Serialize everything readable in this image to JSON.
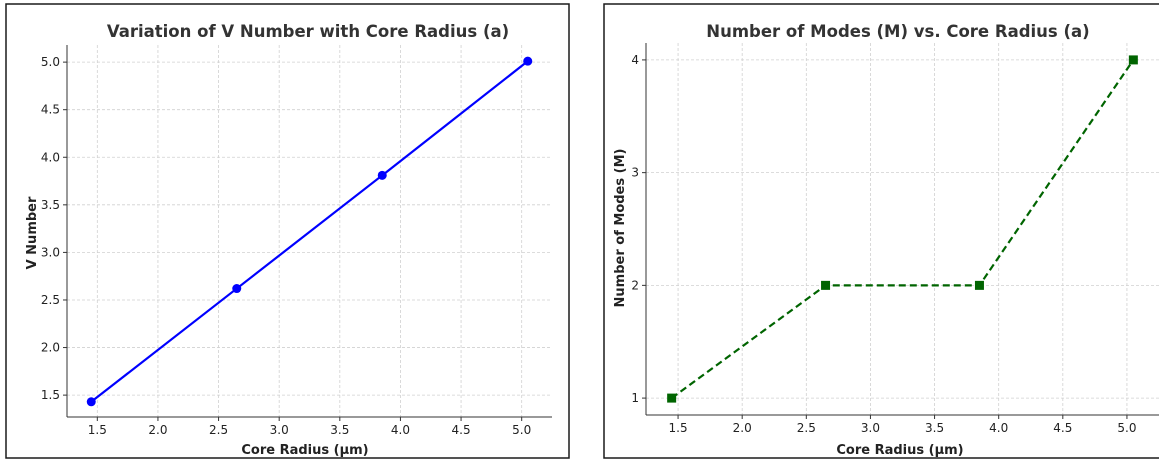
{
  "chart_data": [
    {
      "type": "line",
      "title": "Variation of V Number with Core Radius (a)",
      "xlabel": "Core Radius (µm)",
      "ylabel": "V Number",
      "x": [
        1.45,
        2.65,
        3.85,
        5.05
      ],
      "series": [
        {
          "values": [
            1.43,
            2.62,
            3.81,
            5.01
          ],
          "color": "#0000ff",
          "linestyle": "solid",
          "marker": "circle"
        }
      ],
      "xlim": [
        1.25,
        5.25
      ],
      "ylim": [
        1.27,
        5.18
      ],
      "xticks": [
        1.5,
        2.0,
        2.5,
        3.0,
        3.5,
        4.0,
        4.5,
        5.0
      ],
      "xtick_labels": [
        "1.5",
        "2.0",
        "2.5",
        "3.0",
        "3.5",
        "4.0",
        "4.5",
        "5.0"
      ],
      "yticks": [
        1.5,
        2.0,
        2.5,
        3.0,
        3.5,
        4.0,
        4.5,
        5.0
      ],
      "ytick_labels": [
        "1.5",
        "2.0",
        "2.5",
        "3.0",
        "3.5",
        "4.0",
        "4.5",
        "5.0"
      ],
      "grid": true
    },
    {
      "type": "line",
      "title": "Number of Modes (M) vs. Core Radius (a)",
      "xlabel": "Core Radius (µm)",
      "ylabel": "Number of Modes (M)",
      "x": [
        1.45,
        2.65,
        3.85,
        5.05
      ],
      "series": [
        {
          "values": [
            1,
            2,
            2,
            4
          ],
          "color": "#006400",
          "linestyle": "dashed",
          "marker": "square"
        }
      ],
      "xlim": [
        1.25,
        5.25
      ],
      "ylim": [
        0.85,
        4.15
      ],
      "xticks": [
        1.5,
        2.0,
        2.5,
        3.0,
        3.5,
        4.0,
        4.5,
        5.0
      ],
      "xtick_labels": [
        "1.5",
        "2.0",
        "2.5",
        "3.0",
        "3.5",
        "4.0",
        "4.5",
        "5.0"
      ],
      "yticks": [
        1,
        2,
        3,
        4
      ],
      "ytick_labels": [
        "1",
        "2",
        "3",
        "4"
      ],
      "grid": true
    }
  ]
}
